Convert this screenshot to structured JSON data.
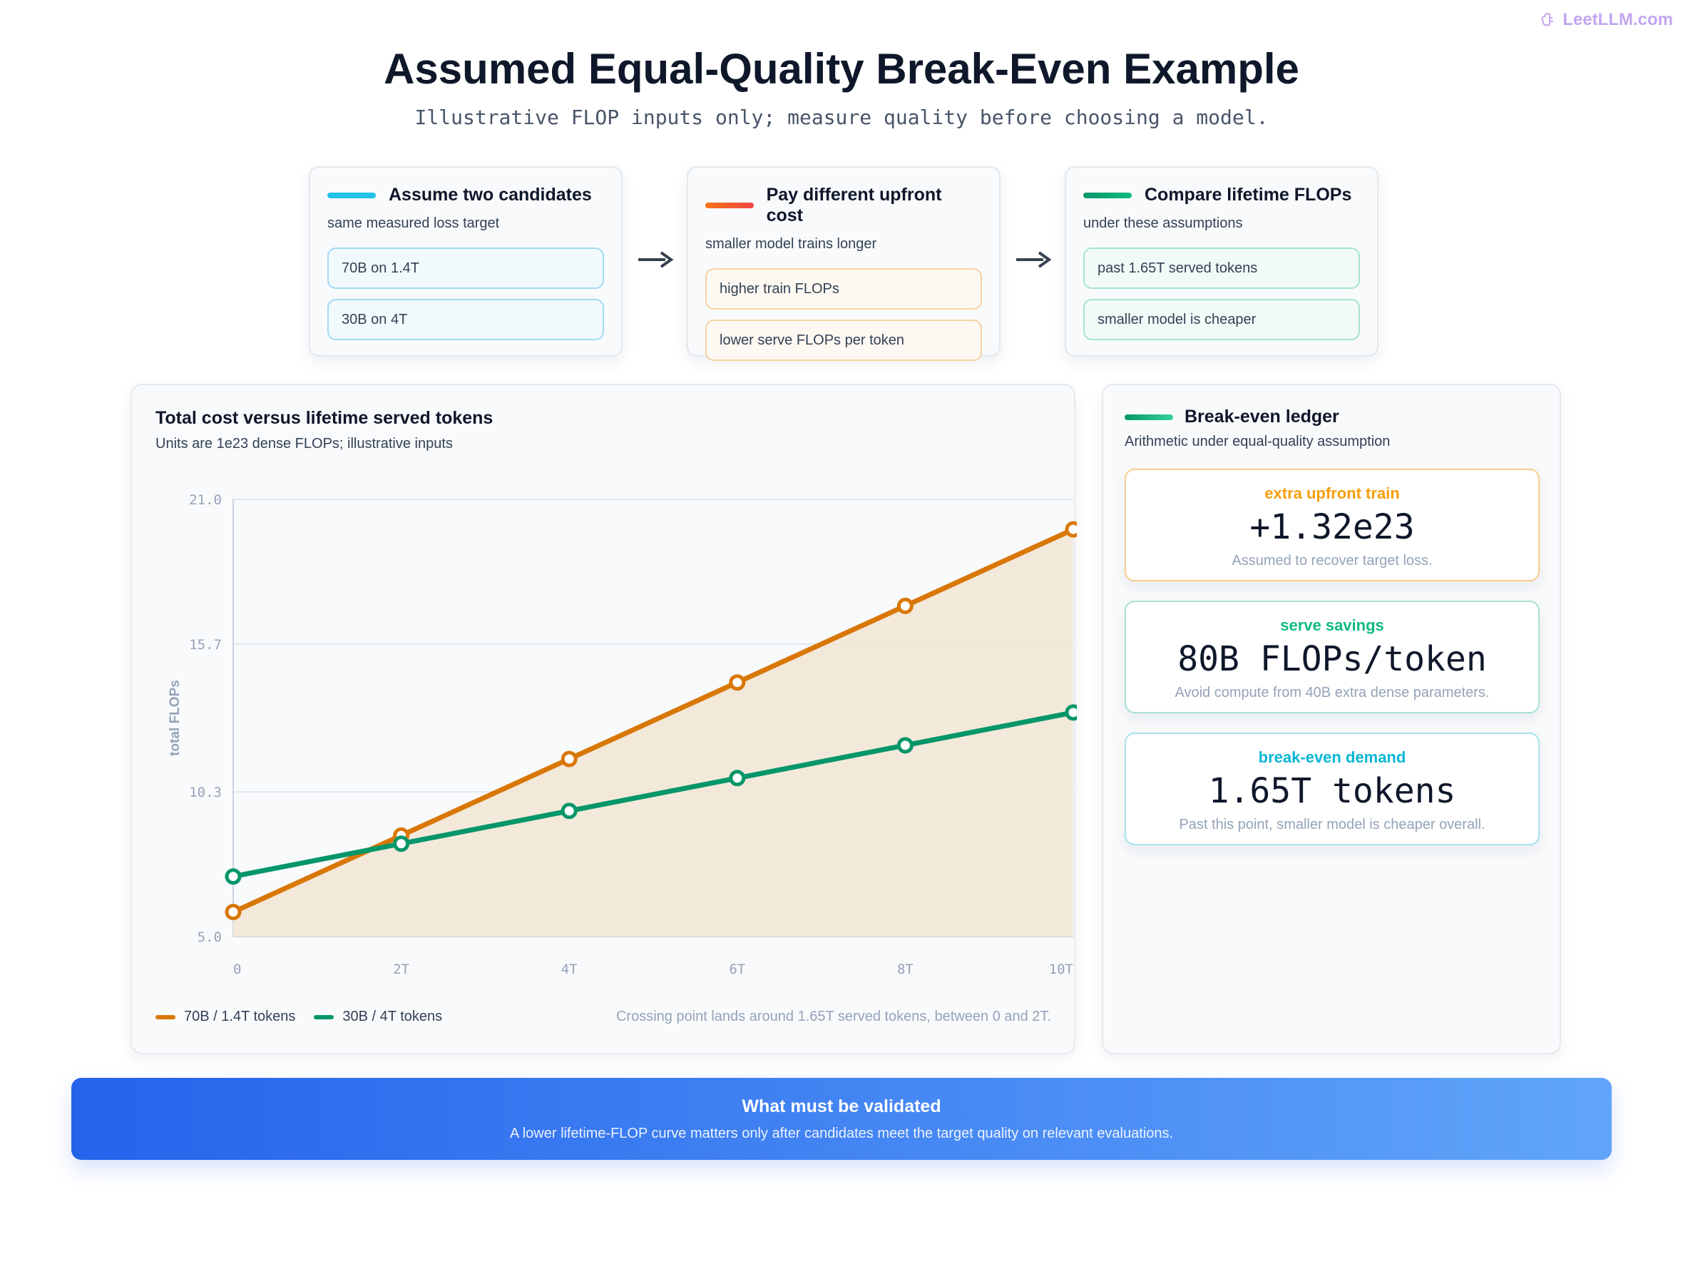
{
  "brand": {
    "label": "LeetLLM.com",
    "icon": "brain-icon"
  },
  "header": {
    "title": "Assumed Equal-Quality Break-Even Example",
    "subtitle": "Illustrative FLOP inputs only; measure quality before choosing a model."
  },
  "steps": [
    {
      "title": "Assume two candidates",
      "subtitle": "same measured loss target",
      "items": [
        "70B on 1.4T",
        "30B on 4T"
      ],
      "accent": "#22c3e6"
    },
    {
      "title": "Pay different upfront cost",
      "subtitle": "smaller model trains longer",
      "items": [
        "higher train FLOPs",
        "lower serve FLOPs per token"
      ],
      "accent": "#f97316"
    },
    {
      "title": "Compare lifetime FLOPs",
      "subtitle": "under these assumptions",
      "items": [
        "past 1.65T served tokens",
        "smaller model is cheaper"
      ],
      "accent": "#10b981"
    }
  ],
  "chart": {
    "title": "Total cost versus lifetime served tokens",
    "subtitle": "Units are 1e23 dense FLOPs; illustrative inputs",
    "note": "Crossing point lands around 1.65T served tokens, between 0 and 2T."
  },
  "chart_data": {
    "type": "line",
    "x": [
      0,
      2,
      4,
      6,
      8,
      10
    ],
    "x_tick_labels": [
      "0",
      "2T",
      "4T",
      "6T",
      "8T",
      "10T"
    ],
    "ylabel": "total FLOPs",
    "ylim": [
      5.0,
      21.0
    ],
    "y_ticks": [
      5.0,
      10.3,
      15.7,
      21.0
    ],
    "y_tick_labels": [
      "5.0",
      "10.3",
      "15.7",
      "21.0"
    ],
    "grid": true,
    "series": [
      {
        "name": "70B / 1.4T tokens",
        "color": "#d97706",
        "values": [
          5.9,
          8.7,
          11.5,
          14.3,
          17.1,
          19.9
        ],
        "fill": true
      },
      {
        "name": "30B / 4T tokens",
        "color": "#059669",
        "values": [
          7.2,
          8.4,
          9.6,
          10.8,
          12.0,
          13.2
        ],
        "fill": false
      }
    ]
  },
  "ledger": {
    "title": "Break-even ledger",
    "subtitle": "Arithmetic under equal-quality assumption",
    "cards": [
      {
        "label": "extra upfront train",
        "value": "+1.32e23",
        "note": "Assumed to recover target loss.",
        "color": "#f59e0b",
        "border": "#f6cf8e"
      },
      {
        "label": "serve savings",
        "value": "80B FLOPs/token",
        "note": "Avoid compute from 40B extra dense parameters.",
        "color": "#10b981",
        "border": "#a7e3d0"
      },
      {
        "label": "break-even demand",
        "value": "1.65T tokens",
        "note": "Past this point, smaller model is cheaper overall.",
        "color": "#06b6d4",
        "border": "#a8e2ee"
      }
    ]
  },
  "banner": {
    "title": "What must be validated",
    "text": "A lower lifetime-FLOP curve matters only after candidates meet the target quality on relevant evaluations."
  }
}
